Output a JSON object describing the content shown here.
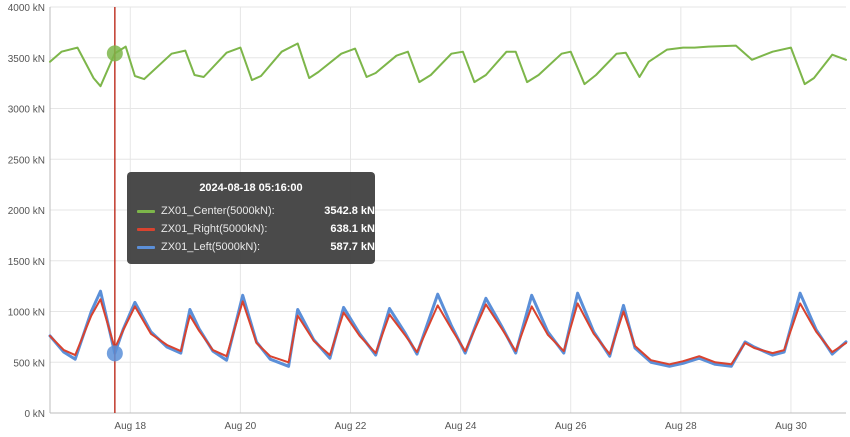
{
  "chart_data": {
    "type": "line",
    "y_unit": "kN",
    "ylim": [
      0,
      4000
    ],
    "y_ticks": [
      "0 kN",
      "500 kN",
      "1000 kN",
      "1500 kN",
      "2000 kN",
      "2500 kN",
      "3000 kN",
      "3500 kN",
      "4000 kN"
    ],
    "x_ticks": [
      "Aug 18",
      "Aug 20",
      "Aug 22",
      "Aug 24",
      "Aug 26",
      "Aug 28",
      "Aug 30"
    ],
    "xlim": [
      "2024-08-17 01:00",
      "2024-08-31 12:00"
    ],
    "grid": true,
    "cursor_time": "2024-08-18 05:16",
    "series": [
      {
        "name": "ZX01_Center(5000kN)",
        "color": "#7db64a",
        "points": [
          [
            "2024-08-17 01:00",
            3460
          ],
          [
            "2024-08-17 06:00",
            3560
          ],
          [
            "2024-08-17 13:00",
            3600
          ],
          [
            "2024-08-17 20:00",
            3300
          ],
          [
            "2024-08-17 23:00",
            3220
          ],
          [
            "2024-08-18 05:16",
            3543
          ],
          [
            "2024-08-18 10:00",
            3610
          ],
          [
            "2024-08-18 14:00",
            3320
          ],
          [
            "2024-08-18 18:00",
            3290
          ],
          [
            "2024-08-19 06:00",
            3540
          ],
          [
            "2024-08-19 12:00",
            3570
          ],
          [
            "2024-08-19 16:00",
            3330
          ],
          [
            "2024-08-19 20:00",
            3310
          ],
          [
            "2024-08-20 06:00",
            3550
          ],
          [
            "2024-08-20 12:00",
            3600
          ],
          [
            "2024-08-20 17:00",
            3280
          ],
          [
            "2024-08-20 21:00",
            3320
          ],
          [
            "2024-08-21 06:00",
            3560
          ],
          [
            "2024-08-21 13:00",
            3640
          ],
          [
            "2024-08-21 18:00",
            3300
          ],
          [
            "2024-08-21 22:00",
            3360
          ],
          [
            "2024-08-22 08:00",
            3540
          ],
          [
            "2024-08-22 14:00",
            3590
          ],
          [
            "2024-08-22 19:00",
            3310
          ],
          [
            "2024-08-22 23:00",
            3350
          ],
          [
            "2024-08-23 08:00",
            3520
          ],
          [
            "2024-08-23 13:00",
            3560
          ],
          [
            "2024-08-23 18:00",
            3260
          ],
          [
            "2024-08-23 23:00",
            3330
          ],
          [
            "2024-08-24 08:00",
            3540
          ],
          [
            "2024-08-24 13:00",
            3560
          ],
          [
            "2024-08-24 18:00",
            3260
          ],
          [
            "2024-08-24 23:00",
            3330
          ],
          [
            "2024-08-25 08:00",
            3560
          ],
          [
            "2024-08-25 12:00",
            3560
          ],
          [
            "2024-08-25 17:00",
            3260
          ],
          [
            "2024-08-25 22:00",
            3330
          ],
          [
            "2024-08-26 08:00",
            3540
          ],
          [
            "2024-08-26 12:00",
            3560
          ],
          [
            "2024-08-26 18:00",
            3240
          ],
          [
            "2024-08-26 23:00",
            3330
          ],
          [
            "2024-08-27 08:00",
            3540
          ],
          [
            "2024-08-27 12:00",
            3550
          ],
          [
            "2024-08-27 18:00",
            3310
          ],
          [
            "2024-08-27 22:00",
            3460
          ],
          [
            "2024-08-28 06:00",
            3580
          ],
          [
            "2024-08-28 13:00",
            3600
          ],
          [
            "2024-08-28 18:00",
            3600
          ],
          [
            "2024-08-29 00:00",
            3610
          ],
          [
            "2024-08-29 12:00",
            3620
          ],
          [
            "2024-08-29 19:00",
            3480
          ],
          [
            "2024-08-30 04:00",
            3560
          ],
          [
            "2024-08-30 12:00",
            3600
          ],
          [
            "2024-08-30 18:00",
            3240
          ],
          [
            "2024-08-30 22:00",
            3300
          ],
          [
            "2024-08-31 06:00",
            3530
          ],
          [
            "2024-08-31 12:00",
            3480
          ]
        ]
      },
      {
        "name": "ZX01_Right(5000kN)",
        "color": "#d9432f",
        "points": [
          [
            "2024-08-17 01:00",
            760
          ],
          [
            "2024-08-17 07:00",
            620
          ],
          [
            "2024-08-17 12:00",
            570
          ],
          [
            "2024-08-17 19:00",
            960
          ],
          [
            "2024-08-17 23:00",
            1120
          ],
          [
            "2024-08-18 05:16",
            638
          ],
          [
            "2024-08-18 09:00",
            820
          ],
          [
            "2024-08-18 14:00",
            1050
          ],
          [
            "2024-08-18 21:00",
            780
          ],
          [
            "2024-08-19 04:00",
            670
          ],
          [
            "2024-08-19 10:00",
            610
          ],
          [
            "2024-08-19 14:00",
            960
          ],
          [
            "2024-08-19 18:00",
            810
          ],
          [
            "2024-08-20 00:00",
            620
          ],
          [
            "2024-08-20 06:00",
            560
          ],
          [
            "2024-08-20 13:00",
            1100
          ],
          [
            "2024-08-20 19:00",
            690
          ],
          [
            "2024-08-21 01:00",
            560
          ],
          [
            "2024-08-21 09:00",
            500
          ],
          [
            "2024-08-21 13:00",
            960
          ],
          [
            "2024-08-21 20:00",
            710
          ],
          [
            "2024-08-22 03:00",
            570
          ],
          [
            "2024-08-22 09:00",
            990
          ],
          [
            "2024-08-22 16:00",
            760
          ],
          [
            "2024-08-22 23:00",
            590
          ],
          [
            "2024-08-23 05:00",
            970
          ],
          [
            "2024-08-23 12:00",
            760
          ],
          [
            "2024-08-23 17:00",
            600
          ],
          [
            "2024-08-24 02:00",
            1060
          ],
          [
            "2024-08-24 08:00",
            830
          ],
          [
            "2024-08-24 14:00",
            610
          ],
          [
            "2024-08-24 23:00",
            1070
          ],
          [
            "2024-08-25 06:00",
            830
          ],
          [
            "2024-08-25 12:00",
            610
          ],
          [
            "2024-08-25 19:00",
            1050
          ],
          [
            "2024-08-26 02:00",
            770
          ],
          [
            "2024-08-26 09:00",
            610
          ],
          [
            "2024-08-26 15:00",
            1080
          ],
          [
            "2024-08-26 22:00",
            780
          ],
          [
            "2024-08-27 05:00",
            580
          ],
          [
            "2024-08-27 11:00",
            1000
          ],
          [
            "2024-08-27 16:00",
            660
          ],
          [
            "2024-08-27 23:00",
            520
          ],
          [
            "2024-08-28 07:00",
            480
          ],
          [
            "2024-08-28 13:00",
            510
          ],
          [
            "2024-08-28 20:00",
            560
          ],
          [
            "2024-08-29 03:00",
            500
          ],
          [
            "2024-08-29 10:00",
            480
          ],
          [
            "2024-08-29 16:00",
            690
          ],
          [
            "2024-08-29 20:00",
            640
          ],
          [
            "2024-08-30 04:00",
            590
          ],
          [
            "2024-08-30 09:00",
            620
          ],
          [
            "2024-08-30 16:00",
            1080
          ],
          [
            "2024-08-30 23:00",
            800
          ],
          [
            "2024-08-31 06:00",
            600
          ],
          [
            "2024-08-31 12:00",
            690
          ]
        ]
      },
      {
        "name": "ZX01_Left(5000kN)",
        "color": "#5b8fd8",
        "points": [
          [
            "2024-08-17 01:00",
            760
          ],
          [
            "2024-08-17 07:00",
            600
          ],
          [
            "2024-08-17 12:00",
            530
          ],
          [
            "2024-08-17 19:00",
            1000
          ],
          [
            "2024-08-17 23:00",
            1200
          ],
          [
            "2024-08-18 05:16",
            588
          ],
          [
            "2024-08-18 09:00",
            830
          ],
          [
            "2024-08-18 14:00",
            1090
          ],
          [
            "2024-08-18 21:00",
            800
          ],
          [
            "2024-08-19 04:00",
            650
          ],
          [
            "2024-08-19 10:00",
            590
          ],
          [
            "2024-08-19 14:00",
            1020
          ],
          [
            "2024-08-19 18:00",
            830
          ],
          [
            "2024-08-20 00:00",
            610
          ],
          [
            "2024-08-20 06:00",
            520
          ],
          [
            "2024-08-20 13:00",
            1160
          ],
          [
            "2024-08-20 19:00",
            700
          ],
          [
            "2024-08-21 01:00",
            530
          ],
          [
            "2024-08-21 09:00",
            460
          ],
          [
            "2024-08-21 13:00",
            1020
          ],
          [
            "2024-08-21 20:00",
            720
          ],
          [
            "2024-08-22 03:00",
            540
          ],
          [
            "2024-08-22 09:00",
            1040
          ],
          [
            "2024-08-22 16:00",
            780
          ],
          [
            "2024-08-22 23:00",
            570
          ],
          [
            "2024-08-23 05:00",
            1030
          ],
          [
            "2024-08-23 12:00",
            780
          ],
          [
            "2024-08-23 17:00",
            580
          ],
          [
            "2024-08-24 02:00",
            1170
          ],
          [
            "2024-08-24 08:00",
            860
          ],
          [
            "2024-08-24 14:00",
            590
          ],
          [
            "2024-08-24 23:00",
            1130
          ],
          [
            "2024-08-25 06:00",
            850
          ],
          [
            "2024-08-25 12:00",
            590
          ],
          [
            "2024-08-25 19:00",
            1160
          ],
          [
            "2024-08-26 02:00",
            800
          ],
          [
            "2024-08-26 09:00",
            590
          ],
          [
            "2024-08-26 15:00",
            1180
          ],
          [
            "2024-08-26 22:00",
            800
          ],
          [
            "2024-08-27 05:00",
            560
          ],
          [
            "2024-08-27 11:00",
            1060
          ],
          [
            "2024-08-27 16:00",
            640
          ],
          [
            "2024-08-27 23:00",
            500
          ],
          [
            "2024-08-28 07:00",
            460
          ],
          [
            "2024-08-28 13:00",
            490
          ],
          [
            "2024-08-28 20:00",
            540
          ],
          [
            "2024-08-29 03:00",
            480
          ],
          [
            "2024-08-29 10:00",
            460
          ],
          [
            "2024-08-29 16:00",
            700
          ],
          [
            "2024-08-29 20:00",
            650
          ],
          [
            "2024-08-30 04:00",
            570
          ],
          [
            "2024-08-30 09:00",
            600
          ],
          [
            "2024-08-30 16:00",
            1180
          ],
          [
            "2024-08-30 23:00",
            820
          ],
          [
            "2024-08-31 06:00",
            580
          ],
          [
            "2024-08-31 12:00",
            700
          ]
        ]
      }
    ]
  },
  "tooltip": {
    "title": "2024-08-18 05:16:00",
    "rows": [
      {
        "name": "ZX01_Center(5000kN):",
        "value": "3542.8 kN",
        "color": "#7db64a"
      },
      {
        "name": "ZX01_Right(5000kN):",
        "value": "638.1 kN",
        "color": "#d9432f"
      },
      {
        "name": "ZX01_Left(5000kN):",
        "value": "587.7 kN",
        "color": "#5b8fd8"
      }
    ]
  },
  "colors": {
    "grid": "#e6e6e6",
    "axis": "#bdbdbd",
    "cursor": "#c0392b",
    "tooltip_bg": "#3c3c3c"
  }
}
